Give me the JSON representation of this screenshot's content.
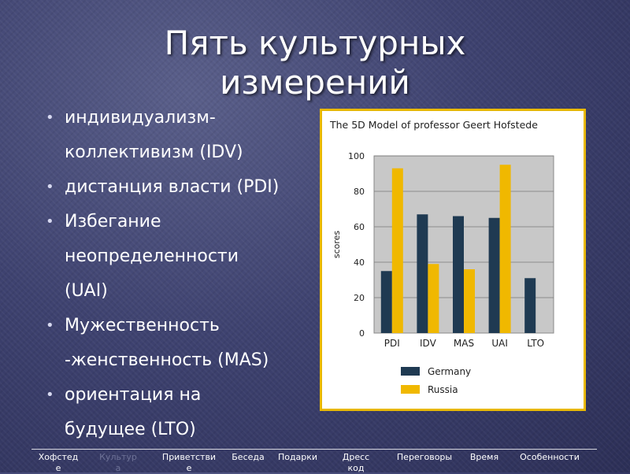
{
  "slide": {
    "title_lines": [
      "Пять культурных",
      "измерений"
    ],
    "bullets": [
      {
        "lines": [
          "индивидуализм-",
          "коллективизм (IDV)"
        ]
      },
      {
        "lines": [
          "дистанция власти (PDI)"
        ]
      },
      {
        "lines": [
          "Избегание",
          "неопределенности",
          "(UAI)"
        ]
      },
      {
        "lines": [
          "Мужественность",
          "-женственность (MAS)"
        ]
      },
      {
        "lines": [
          "ориентация на",
          "будущее (LTO)"
        ]
      }
    ]
  },
  "chart_data": {
    "type": "bar",
    "title": "The 5D Model of professor Geert Hofstede",
    "ylabel": "scores",
    "xlabel": "",
    "categories": [
      "PDI",
      "IDV",
      "MAS",
      "UAI",
      "LTO"
    ],
    "ylim": [
      0,
      100
    ],
    "yticks": [
      0,
      20,
      40,
      60,
      80,
      100
    ],
    "grid": true,
    "legend_position": "bottom",
    "series": [
      {
        "name": "Germany",
        "color": "#1f3a52",
        "values": [
          35,
          67,
          66,
          65,
          31
        ]
      },
      {
        "name": "Russia",
        "color": "#f0b800",
        "values": [
          93,
          39,
          36,
          95,
          null
        ]
      }
    ]
  },
  "nav": {
    "items": [
      {
        "label": "Хофстед\nе",
        "dim": false
      },
      {
        "label": "Культур\nа",
        "dim": true
      },
      {
        "label": "Приветстви\nе",
        "dim": false
      },
      {
        "label": "Беседа",
        "dim": false
      },
      {
        "label": "Подарки",
        "dim": false
      },
      {
        "label": "Дресс\nкод",
        "dim": false
      },
      {
        "label": "Переговоры",
        "dim": false
      },
      {
        "label": "Время",
        "dim": false
      },
      {
        "label": "Особенности",
        "dim": false
      }
    ]
  }
}
